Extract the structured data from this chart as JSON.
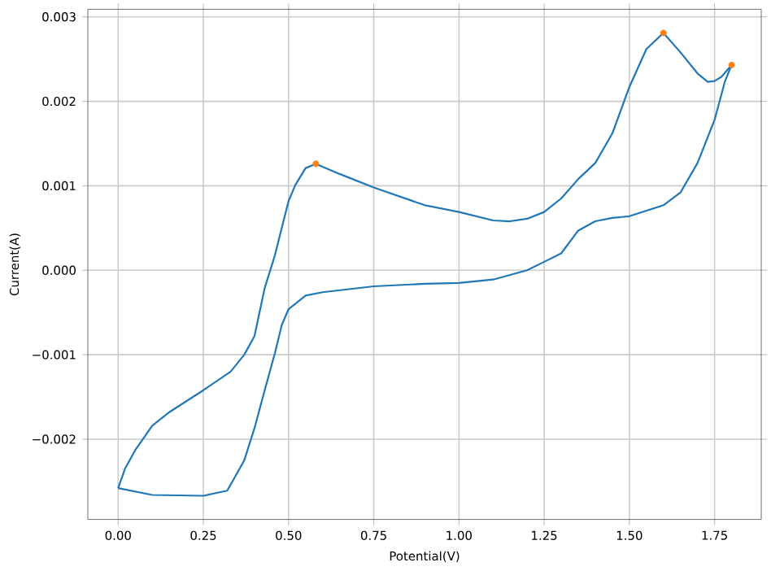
{
  "chart_data": {
    "type": "line",
    "xlabel": "Potential(V)",
    "ylabel": "Current(A)",
    "xlim": [
      -0.089,
      1.887
    ],
    "ylim": [
      -0.00295,
      0.00309
    ],
    "xticks": [
      {
        "value": 0,
        "label": "0.00"
      },
      {
        "value": 0.25,
        "label": "0.25"
      },
      {
        "value": 0.5,
        "label": "0.50"
      },
      {
        "value": 0.75,
        "label": "0.75"
      },
      {
        "value": 1.0,
        "label": "1.00"
      },
      {
        "value": 1.25,
        "label": "1.25"
      },
      {
        "value": 1.5,
        "label": "1.50"
      },
      {
        "value": 1.75,
        "label": "1.75"
      }
    ],
    "yticks": [
      {
        "value": -0.002,
        "label": "−0.002"
      },
      {
        "value": -0.001,
        "label": "−0.001"
      },
      {
        "value": 0,
        "label": "0.000"
      },
      {
        "value": 0.001,
        "label": "0.001"
      },
      {
        "value": 0.002,
        "label": "0.002"
      },
      {
        "value": 0.003,
        "label": "0.003"
      }
    ],
    "grid": true,
    "series": [
      {
        "color": "#1f77b4",
        "marker": "none",
        "line_style": "solid",
        "x": [
          0,
          0.1,
          0.25,
          0.32,
          0.37,
          0.4,
          0.43,
          0.46,
          0.48,
          0.5,
          0.55,
          0.6,
          0.75,
          0.9,
          1.0,
          1.1,
          1.2,
          1.25,
          1.3,
          1.35,
          1.4,
          1.45,
          1.5,
          1.6,
          1.65,
          1.7,
          1.75,
          1.78,
          1.8
        ],
        "values": [
          -0.00258,
          -0.00266,
          -0.00267,
          -0.00261,
          -0.00225,
          -0.00187,
          -0.00142,
          -0.00098,
          -0.00065,
          -0.00046,
          -0.0003,
          -0.00026,
          -0.00019,
          -0.00016,
          -0.00015,
          -0.00011,
          0.0,
          0.0001,
          0.0002,
          0.00047,
          0.00058,
          0.00062,
          0.00064,
          0.00077,
          0.00092,
          0.00127,
          0.00178,
          0.00223,
          0.00243
        ]
      },
      {
        "color": "#1f77b4",
        "marker": "none",
        "line_style": "solid",
        "x": [
          0,
          0.02,
          0.05,
          0.1,
          0.15,
          0.25,
          0.33,
          0.37,
          0.4,
          0.43,
          0.46,
          0.48,
          0.5,
          0.52,
          0.55,
          0.58,
          0.65,
          0.75,
          0.9,
          1.0,
          1.1,
          1.15,
          1.2,
          1.25,
          1.3,
          1.35,
          1.4,
          1.45,
          1.5,
          1.55,
          1.6,
          1.65,
          1.7,
          1.73,
          1.75,
          1.77,
          1.8
        ],
        "values": [
          -0.00258,
          -0.00235,
          -0.00213,
          -0.00184,
          -0.00168,
          -0.00142,
          -0.0012,
          -0.001,
          -0.00078,
          -0.00021,
          0.00018,
          0.0005,
          0.00082,
          0.00101,
          0.00121,
          0.00126,
          0.00114,
          0.00098,
          0.00077,
          0.00069,
          0.00059,
          0.00058,
          0.00061,
          0.00069,
          0.00085,
          0.00108,
          0.00127,
          0.00162,
          0.00217,
          0.00262,
          0.00281,
          0.00258,
          0.00233,
          0.00223,
          0.00224,
          0.00229,
          0.00243
        ]
      },
      {
        "type": "scatter",
        "color": "#ff7f0e",
        "marker": "circle",
        "x": [
          0.58,
          1.6,
          1.8
        ],
        "values": [
          0.00126,
          0.00281,
          0.00243
        ]
      }
    ]
  }
}
